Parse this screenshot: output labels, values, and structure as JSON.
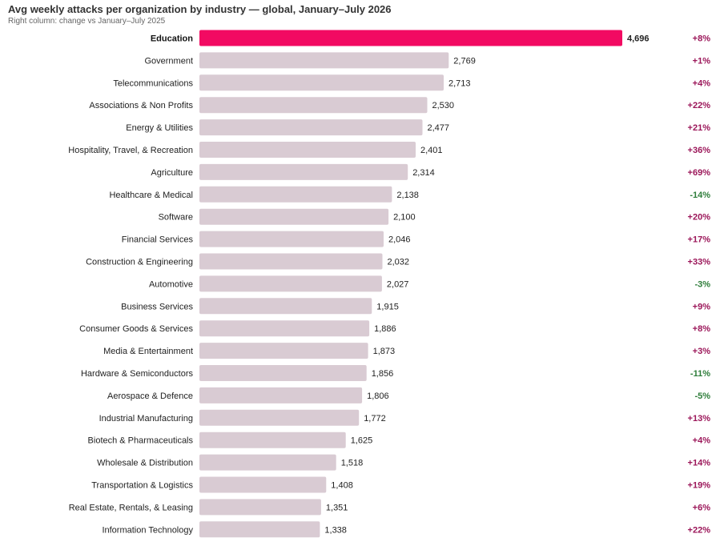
{
  "chart_data": {
    "type": "bar",
    "orientation": "horizontal",
    "title": "Avg weekly attacks per organization by industry — global, January–July 2026",
    "subtitle": "Right column: change vs January–July 2025",
    "categories": [
      "Education",
      "Government",
      "Telecommunications",
      "Associations & Non Profits",
      "Energy & Utilities",
      "Hospitality, Travel, & Recreation",
      "Agriculture",
      "Healthcare & Medical",
      "Software",
      "Financial Services",
      "Construction & Engineering",
      "Automotive",
      "Business Services",
      "Consumer Goods & Services",
      "Media & Entertainment",
      "Hardware & Semiconductors",
      "Aerospace & Defence",
      "Industrial Manufacturing",
      "Biotech & Pharmaceuticals",
      "Wholesale & Distribution",
      "Transportation & Logistics",
      "Real Estate, Rentals, & Leasing",
      "Information Technology"
    ],
    "values": [
      4696,
      2769,
      2713,
      2530,
      2477,
      2401,
      2314,
      2138,
      2100,
      2046,
      2032,
      2027,
      1915,
      1886,
      1873,
      1856,
      1806,
      1772,
      1625,
      1518,
      1408,
      1351,
      1338
    ],
    "value_labels": [
      "4,696",
      "2,769",
      "2,713",
      "2,530",
      "2,477",
      "2,401",
      "2,314",
      "2,138",
      "2,100",
      "2,046",
      "2,032",
      "2,027",
      "1,915",
      "1,886",
      "1,873",
      "1,856",
      "1,806",
      "1,772",
      "1,625",
      "1,518",
      "1,408",
      "1,351",
      "1,338"
    ],
    "change_labels": [
      "+8%",
      "+1%",
      "+4%",
      "+22%",
      "+21%",
      "+36%",
      "+69%",
      "-14%",
      "+20%",
      "+17%",
      "+33%",
      "-3%",
      "+9%",
      "+8%",
      "+3%",
      "-11%",
      "-5%",
      "+13%",
      "+4%",
      "+14%",
      "+19%",
      "+6%",
      "+22%"
    ],
    "highlight_category": "Education",
    "xlim": [
      0,
      4696
    ],
    "grid": false,
    "legend": "none",
    "colors": {
      "highlight_bar": "#f20a62",
      "bar": "#d9cbd3",
      "positive_change": "#9b1659",
      "negative_change": "#2e7d3a"
    }
  }
}
